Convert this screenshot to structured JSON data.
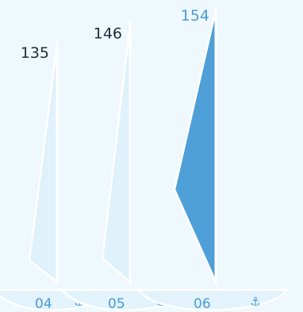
{
  "chart_data": {
    "type": "bar",
    "categories": [
      "04",
      "05",
      "06"
    ],
    "values": [
      135,
      146,
      154
    ],
    "highlight_index": 2,
    "value_colors": [
      "#1f2d3d",
      "#1f2d3d",
      "#4a9ad6"
    ],
    "highlight_color": "#4f9fd8",
    "base_fill": "#dff1fb",
    "anchor_icon": "⚓",
    "title": "",
    "xlabel": "",
    "ylabel": ""
  }
}
